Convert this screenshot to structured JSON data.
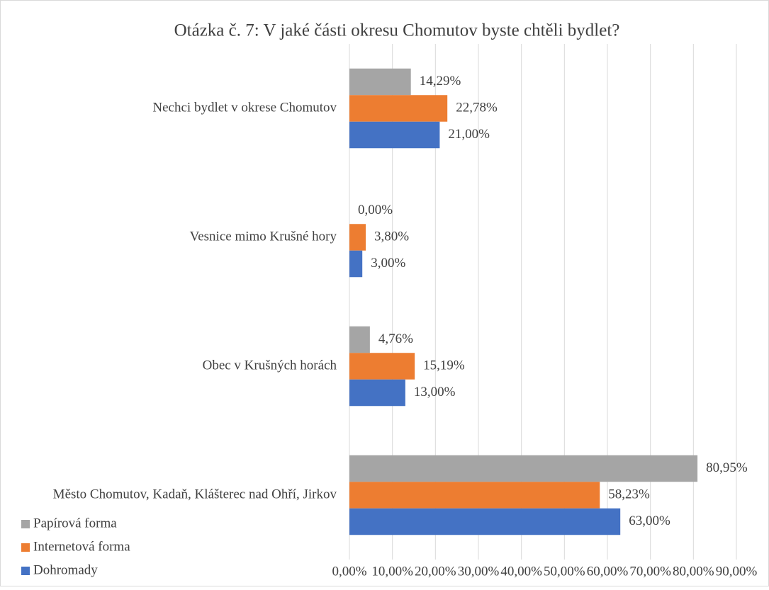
{
  "chart_data": {
    "type": "barh",
    "title": "Otázka č. 7: V jaké části okresu Chomutov byste chtěli bydlet?",
    "categories": [
      "Nechci bydlet v okrese Chomutov",
      "Vesnice mimo Krušné hory",
      "Obec v Krušných horách",
      "Město Chomutov, Kadaň, Klášterec nad Ohří, Jirkov"
    ],
    "series": [
      {
        "name": "Papírová forma",
        "color": "#a5a5a5",
        "values": [
          14.29,
          0,
          4.76,
          80.95
        ],
        "value_labels": [
          "14,29%",
          "0,00%",
          "4,76%",
          "80,95%"
        ]
      },
      {
        "name": "Internetová forma",
        "color": "#ed7d31",
        "values": [
          22.78,
          3.8,
          15.19,
          58.23
        ],
        "value_labels": [
          "22,78%",
          "3,80%",
          "15,19%",
          "58,23%"
        ]
      },
      {
        "name": "Dohromady",
        "color": "#4472c4",
        "values": [
          21,
          3,
          13,
          63
        ],
        "value_labels": [
          "21,00%",
          "3,00%",
          "13,00%",
          "63,00%"
        ]
      }
    ],
    "xlim": [
      0,
      90
    ],
    "xticks": [
      {
        "value": 0,
        "label": "0,00%"
      },
      {
        "value": 10,
        "label": "10,00%"
      },
      {
        "value": 20,
        "label": "20,00%"
      },
      {
        "value": 30,
        "label": "30,00%"
      },
      {
        "value": 40,
        "label": "40,00%"
      },
      {
        "value": 50,
        "label": "50,00%"
      },
      {
        "value": 60,
        "label": "60,00%"
      },
      {
        "value": 70,
        "label": "70,00%"
      },
      {
        "value": 80,
        "label": "80,00%"
      },
      {
        "value": 90,
        "label": "90,00%"
      }
    ],
    "grid": true,
    "legend": "bottom-left"
  }
}
